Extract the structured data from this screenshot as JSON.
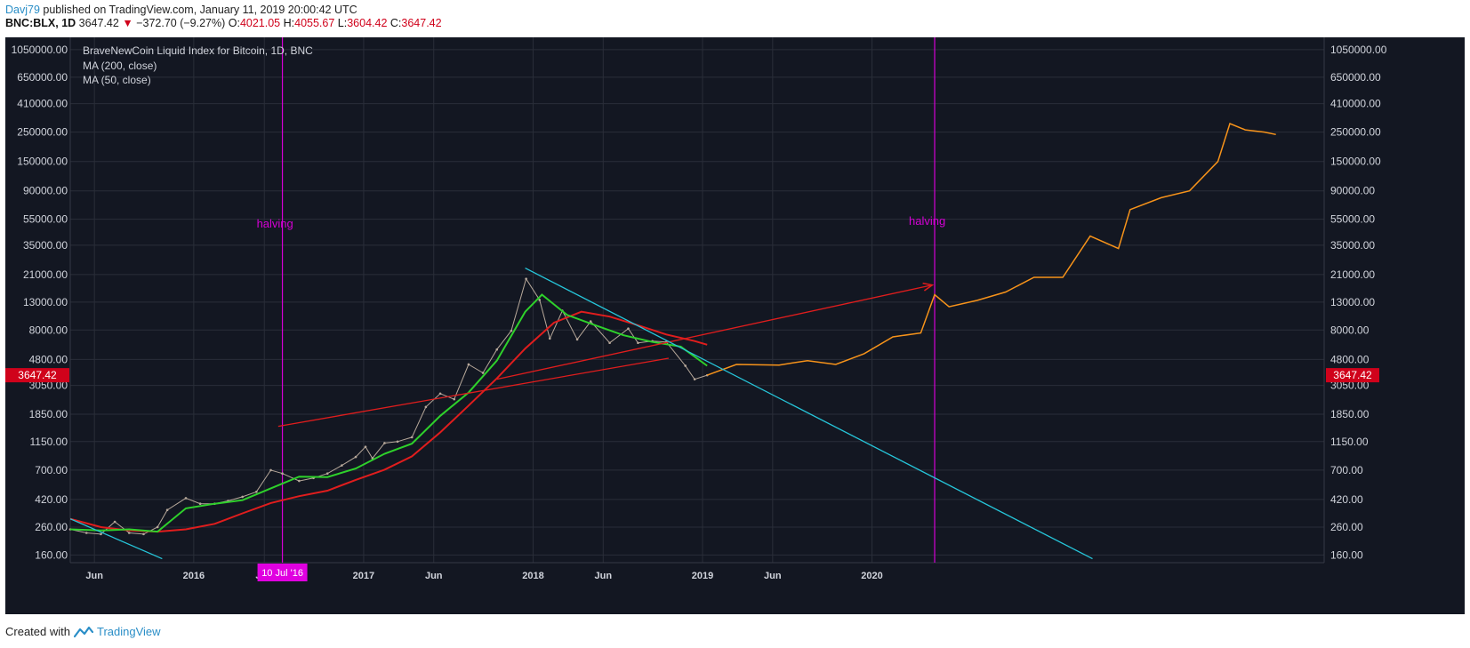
{
  "header": {
    "author": "Davj79",
    "published_text": " published on TradingView.com, January 11, 2019 20:00:42 UTC",
    "symbol_line": "BNC:BLX, 1D",
    "last_price": "3647.42",
    "change": "−372.70 (−9.27%)",
    "o_label": "O:",
    "o_value": "4021.05",
    "h_label": "H:",
    "h_value": "4055.67",
    "l_label": "L:",
    "l_value": "3604.42",
    "c_label": "C:",
    "c_value": "3647.42"
  },
  "legend": {
    "title": "BraveNewCoin Liquid Index for Bitcoin, 1D, BNC",
    "ma200": "MA (200, close)",
    "ma50": "MA (50, close)"
  },
  "footer": {
    "created_with": "Created with",
    "brand": "TradingView"
  },
  "colors": {
    "background": "#131722",
    "grid": "#2a2e39",
    "axis_text": "#d1d4dc",
    "ma200": "#e01d1d",
    "ma50": "#2ed12b",
    "projection": "#f7931a",
    "trend_red": "#e01d1d",
    "trend_cyan": "#26c6da",
    "halving": "#d500d5",
    "price_tag": "#d0021b",
    "date_tag": "#e000e0"
  },
  "chart_data": {
    "type": "line",
    "title": "BraveNewCoin Liquid Index for Bitcoin, 1D, BNC",
    "y_scale": "log",
    "ylim": [
      140,
      1300000
    ],
    "xlim": [
      "2015-04-10",
      "2022-09-01"
    ],
    "y_ticks": [
      "1050000.00",
      "650000.00",
      "410000.00",
      "250000.00",
      "150000.00",
      "90000.00",
      "55000.00",
      "35000.00",
      "21000.00",
      "13000.00",
      "8000.00",
      "4800.00",
      "3050.00",
      "1850.00",
      "1150.00",
      "700.00",
      "420.00",
      "260.00",
      "160.00"
    ],
    "y_tick_values": [
      1050000,
      650000,
      410000,
      250000,
      150000,
      90000,
      55000,
      35000,
      21000,
      13000,
      8000,
      4800,
      3050,
      1850,
      1150,
      700,
      420,
      260,
      160
    ],
    "x_ticks": [
      "Jun",
      "2016",
      "Jun",
      "2017",
      "Jun",
      "2018",
      "Jun",
      "2019",
      "Jun",
      "2020"
    ],
    "x_tick_dates": [
      "2015-06-01",
      "2016-01-01",
      "2016-06-01",
      "2017-01-01",
      "2017-06-01",
      "2018-01-01",
      "2018-06-01",
      "2019-01-01",
      "2019-06-01",
      "2020-01-01"
    ],
    "last_price_label": "3647.42",
    "last_price": 3647.42,
    "crosshair_date_label": "10 Jul '16",
    "crosshair_date": "2016-07-10",
    "grid": true,
    "series": [
      {
        "name": "BraveNewCoin Liquid Index for Bitcoin, 1D, BNC",
        "x": [
          "2015-04-10",
          "2015-05-15",
          "2015-06-15",
          "2015-07-15",
          "2015-08-15",
          "2015-09-15",
          "2015-10-15",
          "2015-11-05",
          "2015-12-15",
          "2016-01-15",
          "2016-02-15",
          "2016-03-15",
          "2016-04-15",
          "2016-05-15",
          "2016-06-15",
          "2016-07-10",
          "2016-08-15",
          "2016-09-15",
          "2016-10-15",
          "2016-11-15",
          "2016-12-15",
          "2017-01-05",
          "2017-01-20",
          "2017-02-15",
          "2017-03-15",
          "2017-04-15",
          "2017-05-15",
          "2017-06-15",
          "2017-07-15",
          "2017-08-15",
          "2017-09-15",
          "2017-10-15",
          "2017-11-15",
          "2017-12-17",
          "2018-01-15",
          "2018-02-06",
          "2018-03-05",
          "2018-04-06",
          "2018-05-05",
          "2018-06-15",
          "2018-07-25",
          "2018-08-15",
          "2018-09-15",
          "2018-10-15",
          "2018-11-25",
          "2018-12-15",
          "2019-01-11"
        ],
        "values": [
          250,
          235,
          230,
          285,
          235,
          230,
          260,
          350,
          430,
          390,
          390,
          410,
          440,
          480,
          700,
          660,
          580,
          610,
          660,
          760,
          880,
          1050,
          860,
          1120,
          1150,
          1240,
          2100,
          2650,
          2400,
          4400,
          3800,
          5700,
          7900,
          19500,
          13500,
          6900,
          11200,
          6800,
          9300,
          6400,
          8200,
          6400,
          6600,
          6500,
          4300,
          3400,
          3647
        ]
      },
      {
        "name": "MA (50, close)",
        "x": [
          "2015-04-10",
          "2015-06-15",
          "2015-08-15",
          "2015-10-15",
          "2015-12-15",
          "2016-02-15",
          "2016-04-15",
          "2016-06-15",
          "2016-08-15",
          "2016-10-15",
          "2016-12-15",
          "2017-02-15",
          "2017-04-15",
          "2017-06-15",
          "2017-08-15",
          "2017-10-15",
          "2017-12-15",
          "2018-01-20",
          "2018-03-15",
          "2018-05-15",
          "2018-07-15",
          "2018-09-15",
          "2018-11-15",
          "2019-01-11"
        ],
        "values": [
          250,
          245,
          250,
          240,
          360,
          390,
          415,
          510,
          625,
          620,
          720,
          930,
          1110,
          1800,
          2700,
          4700,
          11000,
          14800,
          10400,
          8700,
          7300,
          6500,
          6000,
          4300
        ]
      },
      {
        "name": "MA (200, close)",
        "x": [
          "2015-04-10",
          "2015-06-15",
          "2015-08-15",
          "2015-10-15",
          "2015-12-15",
          "2016-02-15",
          "2016-04-15",
          "2016-06-15",
          "2016-08-15",
          "2016-10-15",
          "2016-12-15",
          "2017-02-15",
          "2017-04-15",
          "2017-06-15",
          "2017-08-15",
          "2017-10-15",
          "2017-12-15",
          "2018-02-15",
          "2018-04-15",
          "2018-06-15",
          "2018-08-15",
          "2018-10-15",
          "2018-12-15",
          "2019-01-11"
        ],
        "values": [
          300,
          260,
          245,
          240,
          250,
          275,
          330,
          395,
          445,
          490,
          590,
          705,
          890,
          1350,
          2150,
          3450,
          5800,
          9100,
          11000,
          10100,
          8700,
          7400,
          6600,
          6200
        ]
      },
      {
        "name": "Projection",
        "x": [
          "2019-01-11",
          "2019-03-15",
          "2019-06-15",
          "2019-08-15",
          "2019-10-15",
          "2019-12-15",
          "2020-02-15",
          "2020-04-15",
          "2020-05-15",
          "2020-06-15",
          "2020-08-15",
          "2020-10-15",
          "2020-12-15",
          "2021-02-15",
          "2021-04-15",
          "2021-06-15",
          "2021-07-10",
          "2021-09-15",
          "2021-11-15",
          "2022-01-15",
          "2022-02-10",
          "2022-03-15",
          "2022-04-25",
          "2022-05-20"
        ],
        "values": [
          3647,
          4400,
          4350,
          4700,
          4400,
          5300,
          7100,
          7600,
          14800,
          12000,
          13400,
          15500,
          20000,
          20000,
          41000,
          33000,
          65000,
          80000,
          90000,
          150000,
          290000,
          260000,
          250000,
          240000
        ]
      }
    ],
    "annotations": [
      {
        "type": "vline",
        "date": "2016-07-10",
        "label": "halving"
      },
      {
        "type": "vline",
        "date": "2020-05-15",
        "label": "halving"
      },
      {
        "type": "trendline",
        "name": "upper-trendline",
        "from": [
          "2016-07-01",
          1500
        ],
        "to": [
          "2018-10-20",
          4900
        ]
      },
      {
        "type": "trendline",
        "name": "projection-arrow",
        "from": [
          "2017-10-15",
          3400
        ],
        "to": [
          "2020-05-10",
          17500
        ]
      },
      {
        "type": "trendline",
        "name": "downtrend-line",
        "from": [
          "2017-12-15",
          23500
        ],
        "to": [
          "2021-04-20",
          150
        ]
      },
      {
        "type": "trendline",
        "name": "lower-trendline",
        "from": [
          "2015-04-10",
          300
        ],
        "to": [
          "2015-10-25",
          150
        ]
      }
    ]
  }
}
